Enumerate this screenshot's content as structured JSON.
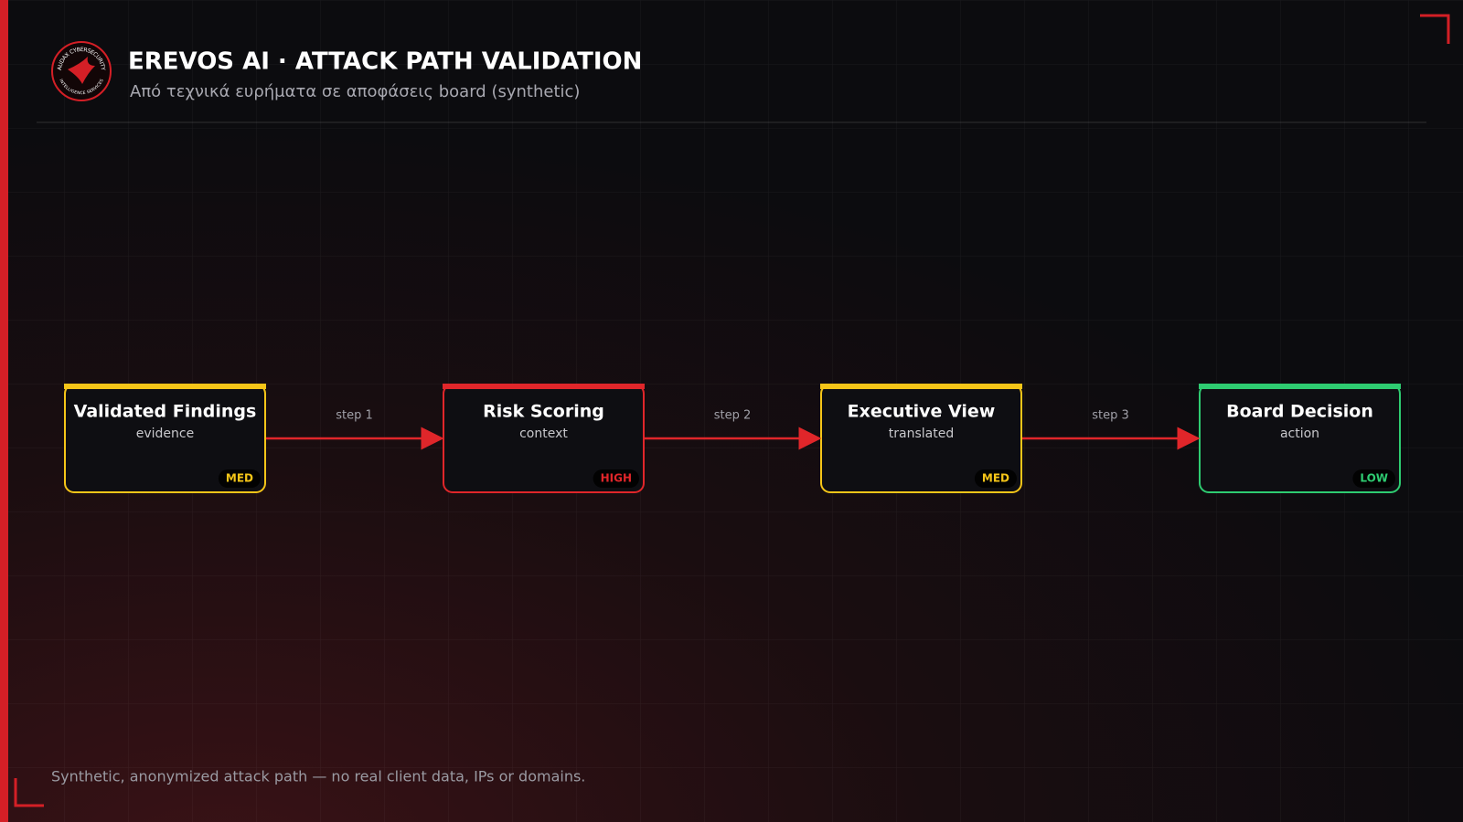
{
  "header": {
    "title": "EREVOS AI · ATTACK PATH VALIDATION",
    "subtitle": "Από τεχνικά ευρήματα σε αποφάσεις board (synthetic)"
  },
  "logo": {
    "top": "AUDAX CYBERSECURITY",
    "bottom": "INTELLIGENCE SERVICES"
  },
  "nodes": [
    {
      "title": "Validated Findings",
      "subtitle": "evidence",
      "badge": "MED",
      "color": "#f5c518"
    },
    {
      "title": "Risk Scoring",
      "subtitle": "context",
      "badge": "HIGH",
      "color": "#e0262a"
    },
    {
      "title": "Executive View",
      "subtitle": "translated",
      "badge": "MED",
      "color": "#f5c518"
    },
    {
      "title": "Board Decision",
      "subtitle": "action",
      "badge": "LOW",
      "color": "#2ecc71"
    }
  ],
  "edges": [
    {
      "label": "step 1"
    },
    {
      "label": "step 2"
    },
    {
      "label": "step 3"
    }
  ],
  "footer": {
    "note": "Synthetic, anonymized attack path — no real client data, IPs or domains."
  }
}
